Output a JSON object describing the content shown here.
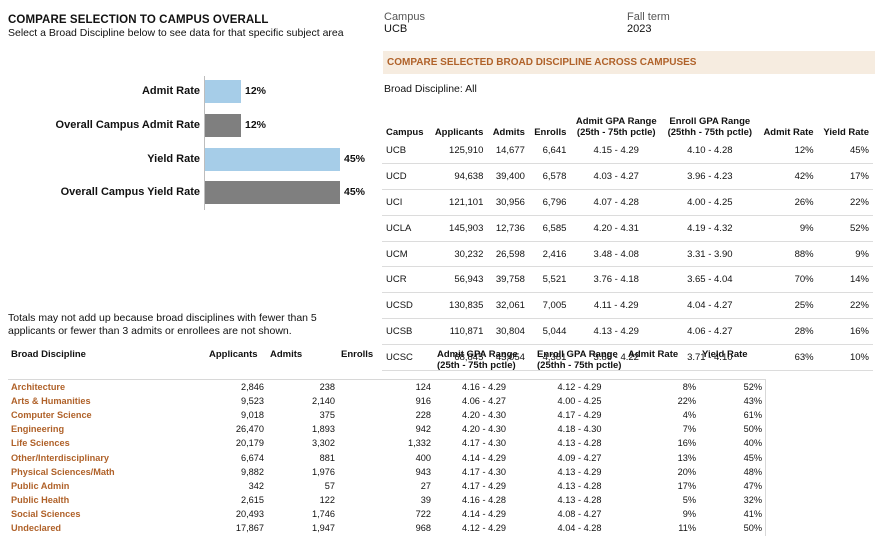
{
  "left": {
    "title": "COMPARE SELECTION TO CAMPUS OVERALL",
    "subtitle": "Select a Broad Discipline below to see data for that specific subject area",
    "bars": [
      {
        "label": "Admit Rate",
        "value_text": "12%",
        "value": 12,
        "style": "light"
      },
      {
        "label": "Overall Campus Admit Rate",
        "value_text": "12%",
        "value": 12,
        "style": "dark"
      },
      {
        "label": "Yield Rate",
        "value_text": "45%",
        "value": 45,
        "style": "light"
      },
      {
        "label": "Overall Campus Yield Rate",
        "value_text": "45%",
        "value": 45,
        "style": "dark"
      }
    ],
    "note": "Totals may not add up because broad disciplines with fewer than 5 applicants or fewer than 3 admits or enrollees are not shown."
  },
  "header": {
    "campus_label": "Campus",
    "campus_value": "UCB",
    "term_label": "Fall term",
    "term_value": "2023"
  },
  "compare": {
    "banner": "COMPARE SELECTED BROAD DISCIPLINE ACROSS CAMPUSES",
    "filter": "Broad Discipline: All",
    "columns": {
      "campus": "Campus",
      "applicants": "Applicants",
      "admits": "Admits",
      "enrolls": "Enrolls",
      "admit_gpa_1": "Admit GPA Range",
      "admit_gpa_2": "(25th - 75th pctle)",
      "enroll_gpa_1": "Enroll GPA Range",
      "enroll_gpa_2": "(25thh - 75th pctle)",
      "admit_rate": "Admit Rate",
      "yield_rate": "Yield Rate"
    },
    "rows": [
      {
        "campus": "UCB",
        "applicants": "125,910",
        "admits": "14,677",
        "enrolls": "6,641",
        "admit_gpa": "4.15 - 4.29",
        "enroll_gpa": "4.10 - 4.28",
        "admit_rate": "12%",
        "yield_rate": "45%"
      },
      {
        "campus": "UCD",
        "applicants": "94,638",
        "admits": "39,400",
        "enrolls": "6,578",
        "admit_gpa": "4.03 - 4.27",
        "enroll_gpa": "3.96 - 4.23",
        "admit_rate": "42%",
        "yield_rate": "17%"
      },
      {
        "campus": "UCI",
        "applicants": "121,101",
        "admits": "30,956",
        "enrolls": "6,796",
        "admit_gpa": "4.07 - 4.28",
        "enroll_gpa": "4.00 - 4.25",
        "admit_rate": "26%",
        "yield_rate": "22%"
      },
      {
        "campus": "UCLA",
        "applicants": "145,903",
        "admits": "12,736",
        "enrolls": "6,585",
        "admit_gpa": "4.20 - 4.31",
        "enroll_gpa": "4.19 - 4.32",
        "admit_rate": "9%",
        "yield_rate": "52%"
      },
      {
        "campus": "UCM",
        "applicants": "30,232",
        "admits": "26,598",
        "enrolls": "2,416",
        "admit_gpa": "3.48 - 4.08",
        "enroll_gpa": "3.31 - 3.90",
        "admit_rate": "88%",
        "yield_rate": "9%"
      },
      {
        "campus": "UCR",
        "applicants": "56,943",
        "admits": "39,758",
        "enrolls": "5,521",
        "admit_gpa": "3.76 - 4.18",
        "enroll_gpa": "3.65 - 4.04",
        "admit_rate": "70%",
        "yield_rate": "14%"
      },
      {
        "campus": "UCSD",
        "applicants": "130,835",
        "admits": "32,061",
        "enrolls": "7,005",
        "admit_gpa": "4.11 - 4.29",
        "enroll_gpa": "4.04 - 4.27",
        "admit_rate": "25%",
        "yield_rate": "22%"
      },
      {
        "campus": "UCSB",
        "applicants": "110,871",
        "admits": "30,804",
        "enrolls": "5,044",
        "admit_gpa": "4.13 - 4.29",
        "enroll_gpa": "4.06 - 4.27",
        "admit_rate": "28%",
        "yield_rate": "16%"
      },
      {
        "campus": "UCSC",
        "applicants": "68,845",
        "admits": "43,054",
        "enrolls": "4,381",
        "admit_gpa": "3.86 - 4.22",
        "enroll_gpa": "3.71 - 4.10",
        "admit_rate": "63%",
        "yield_rate": "10%"
      }
    ]
  },
  "disciplines": {
    "columns": {
      "name": "Broad Discipline",
      "applicants": "Applicants",
      "admits": "Admits",
      "enrolls": "Enrolls",
      "admit_gpa_1": "Admit GPA Range",
      "admit_gpa_2": "(25th - 75th pctle)",
      "enroll_gpa_1": "Enroll GPA Range",
      "enroll_gpa_2": "(25thh - 75th pctle)",
      "admit_rate": "Admit Rate",
      "yield_rate": "Yield Rate"
    },
    "rows": [
      {
        "name": "Architecture",
        "applicants": "2,846",
        "admits": "238",
        "enrolls": "124",
        "admit_gpa": "4.16 - 4.29",
        "enroll_gpa": "4.12 - 4.29",
        "admit_rate": "8%",
        "yield_rate": "52%"
      },
      {
        "name": "Arts & Humanities",
        "applicants": "9,523",
        "admits": "2,140",
        "enrolls": "916",
        "admit_gpa": "4.06 - 4.27",
        "enroll_gpa": "4.00 - 4.25",
        "admit_rate": "22%",
        "yield_rate": "43%"
      },
      {
        "name": "Computer Science",
        "applicants": "9,018",
        "admits": "375",
        "enrolls": "228",
        "admit_gpa": "4.20 - 4.30",
        "enroll_gpa": "4.17 - 4.29",
        "admit_rate": "4%",
        "yield_rate": "61%"
      },
      {
        "name": "Engineering",
        "applicants": "26,470",
        "admits": "1,893",
        "enrolls": "942",
        "admit_gpa": "4.20 - 4.30",
        "enroll_gpa": "4.18 - 4.30",
        "admit_rate": "7%",
        "yield_rate": "50%"
      },
      {
        "name": "Life Sciences",
        "applicants": "20,179",
        "admits": "3,302",
        "enrolls": "1,332",
        "admit_gpa": "4.17 - 4.30",
        "enroll_gpa": "4.13 - 4.28",
        "admit_rate": "16%",
        "yield_rate": "40%"
      },
      {
        "name": "Other/Interdisciplinary",
        "applicants": "6,674",
        "admits": "881",
        "enrolls": "400",
        "admit_gpa": "4.14 - 4.29",
        "enroll_gpa": "4.09 - 4.27",
        "admit_rate": "13%",
        "yield_rate": "45%"
      },
      {
        "name": "Physical Sciences/Math",
        "applicants": "9,882",
        "admits": "1,976",
        "enrolls": "943",
        "admit_gpa": "4.17 - 4.30",
        "enroll_gpa": "4.13 - 4.29",
        "admit_rate": "20%",
        "yield_rate": "48%"
      },
      {
        "name": "Public Admin",
        "applicants": "342",
        "admits": "57",
        "enrolls": "27",
        "admit_gpa": "4.17 - 4.29",
        "enroll_gpa": "4.13 - 4.28",
        "admit_rate": "17%",
        "yield_rate": "47%"
      },
      {
        "name": "Public Health",
        "applicants": "2,615",
        "admits": "122",
        "enrolls": "39",
        "admit_gpa": "4.16 - 4.28",
        "enroll_gpa": "4.13 - 4.28",
        "admit_rate": "5%",
        "yield_rate": "32%"
      },
      {
        "name": "Social Sciences",
        "applicants": "20,493",
        "admits": "1,746",
        "enrolls": "722",
        "admit_gpa": "4.14 - 4.29",
        "enroll_gpa": "4.08 - 4.27",
        "admit_rate": "9%",
        "yield_rate": "41%"
      },
      {
        "name": "Undeclared",
        "applicants": "17,867",
        "admits": "1,947",
        "enrolls": "968",
        "admit_gpa": "4.12 - 4.29",
        "enroll_gpa": "4.04 - 4.28",
        "admit_rate": "11%",
        "yield_rate": "50%"
      }
    ]
  }
}
